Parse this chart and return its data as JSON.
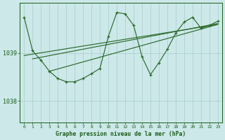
{
  "title": "Graphe pression niveau de la mer (hPa)",
  "bg_color": "#cce8e8",
  "grid_color": "#aacccc",
  "line_color": "#2d6a2d",
  "text_color": "#1a5c1a",
  "ytick_vals": [
    1038,
    1039
  ],
  "ylim": [
    1037.55,
    1040.05
  ],
  "xlim": [
    -0.5,
    23.5
  ],
  "xticks": [
    0,
    1,
    2,
    3,
    4,
    5,
    6,
    7,
    8,
    9,
    10,
    11,
    12,
    13,
    14,
    15,
    16,
    17,
    18,
    19,
    20,
    21,
    22,
    23
  ],
  "series_main_x": [
    0,
    1,
    2,
    3,
    4,
    5,
    6,
    7,
    8,
    9,
    10,
    11,
    12,
    13,
    14,
    15,
    16,
    17,
    18,
    19,
    20,
    21,
    22,
    23
  ],
  "series_main_y": [
    1039.75,
    1039.05,
    1038.85,
    1038.62,
    1038.47,
    1038.4,
    1038.4,
    1038.47,
    1038.57,
    1038.68,
    1039.35,
    1039.85,
    1039.82,
    1039.58,
    1038.92,
    1038.55,
    1038.8,
    1039.08,
    1039.42,
    1039.65,
    1039.75,
    1039.52,
    1039.58,
    1039.67
  ],
  "trend_lines": [
    {
      "x": [
        0,
        23
      ],
      "y": [
        1038.95,
        1039.6
      ]
    },
    {
      "x": [
        1,
        23
      ],
      "y": [
        1038.88,
        1039.62
      ]
    },
    {
      "x": [
        3,
        23
      ],
      "y": [
        1038.62,
        1039.6
      ]
    }
  ]
}
